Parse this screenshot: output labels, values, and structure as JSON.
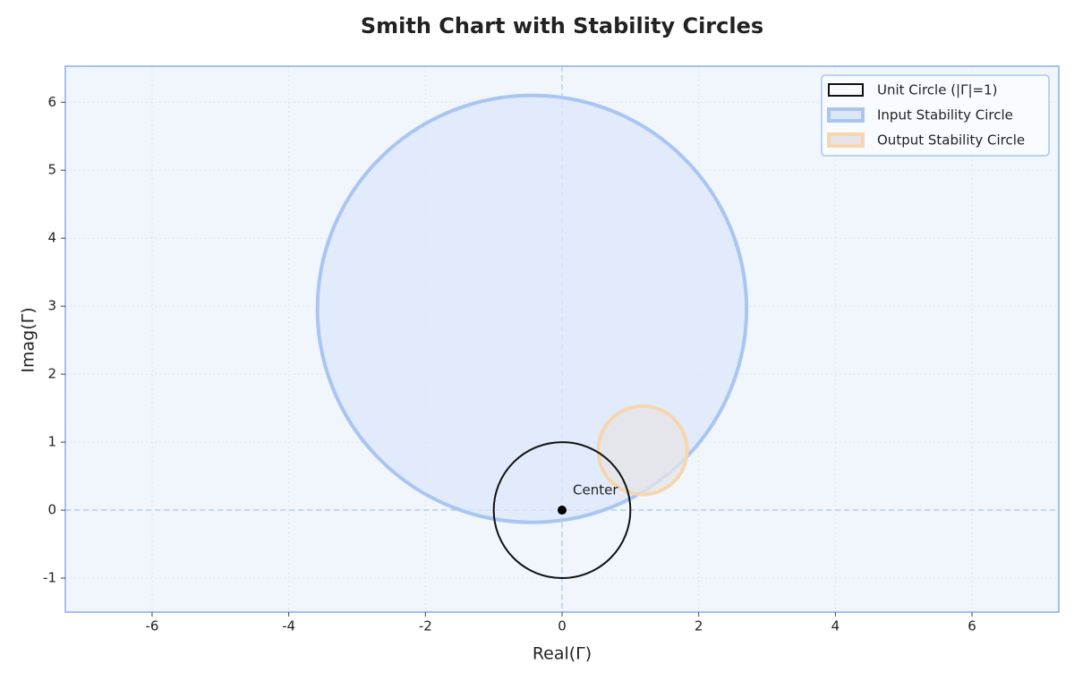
{
  "chart_data": {
    "type": "circles",
    "title": "Smith Chart with Stability Circles",
    "x_label": "Real(Γ)",
    "y_label": "Imag(Γ)",
    "xlim": [
      -7.27,
      7.27
    ],
    "ylim": [
      -1.5,
      6.53
    ],
    "xticks": [
      -6,
      -4,
      -2,
      0,
      2,
      4,
      6
    ],
    "yticks": [
      -1,
      0,
      1,
      2,
      3,
      4,
      5,
      6
    ],
    "grid": true,
    "legend": "upper right",
    "circles": [
      {
        "name": "Unit Circle (|Γ|=1)",
        "center_x": 0,
        "center_y": 0,
        "radius": 1,
        "color": "#111111",
        "fill": "none"
      },
      {
        "name": "Input Stability Circle",
        "center_x": -0.44,
        "center_y": 2.96,
        "radius": 3.14,
        "color": "#a9c5f2",
        "fill": "#dce7f9"
      },
      {
        "name": "Output Stability Circle",
        "center_x": 1.18,
        "center_y": 0.88,
        "radius": 0.65,
        "color": "#f6d6ad",
        "fill": "#e6e4e6"
      }
    ],
    "points": [
      {
        "x": 0,
        "y": 0,
        "label": "Center",
        "color": "#000000"
      }
    ]
  }
}
